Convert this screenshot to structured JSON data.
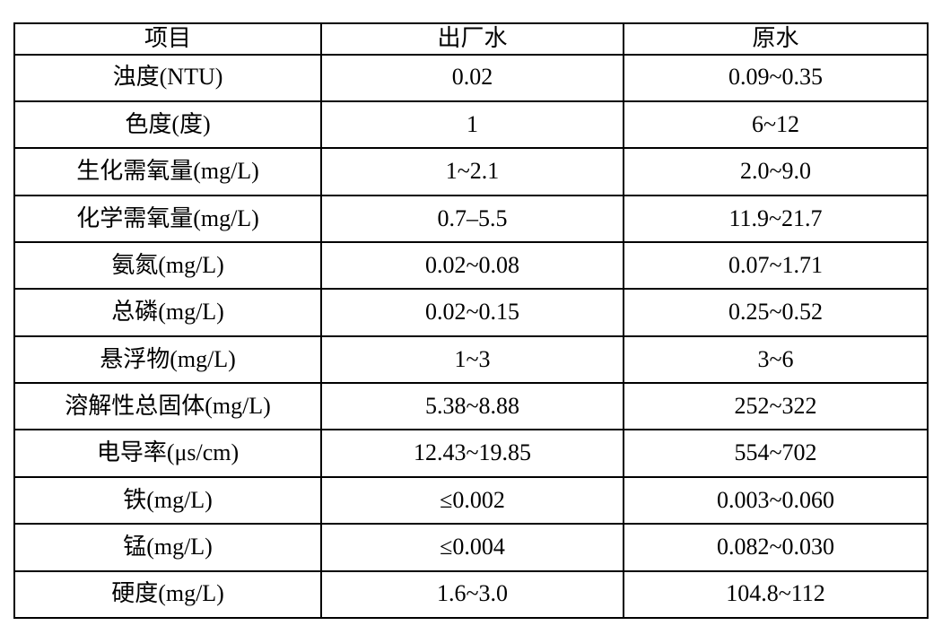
{
  "page": {
    "background_color": "#ffffff",
    "border_color": "#000000"
  },
  "chart_data": {
    "type": "table",
    "title": "",
    "columns": [
      "项目",
      "出厂水",
      "原水"
    ],
    "rows": [
      [
        "浊度(NTU)",
        "0.02",
        "0.09~0.35"
      ],
      [
        "色度(度)",
        "1",
        "6~12"
      ],
      [
        "生化需氧量(mg/L)",
        "1~2.1",
        "2.0~9.0"
      ],
      [
        "化学需氧量(mg/L)",
        "0.7–5.5",
        "11.9~21.7"
      ],
      [
        "氨氮(mg/L)",
        "0.02~0.08",
        "0.07~1.71"
      ],
      [
        "总磷(mg/L)",
        "0.02~0.15",
        "0.25~0.52"
      ],
      [
        "悬浮物(mg/L)",
        "1~3",
        "3~6"
      ],
      [
        "溶解性总固体(mg/L)",
        "5.38~8.88",
        "252~322"
      ],
      [
        "电导率(μs/cm)",
        "12.43~19.85",
        "554~702"
      ],
      [
        "铁(mg/L)",
        "≤0.002",
        "0.003~0.060"
      ],
      [
        "锰(mg/L)",
        "≤0.004",
        "0.082~0.030"
      ],
      [
        "硬度(mg/L)",
        "1.6~3.0",
        "104.8~112"
      ]
    ]
  }
}
